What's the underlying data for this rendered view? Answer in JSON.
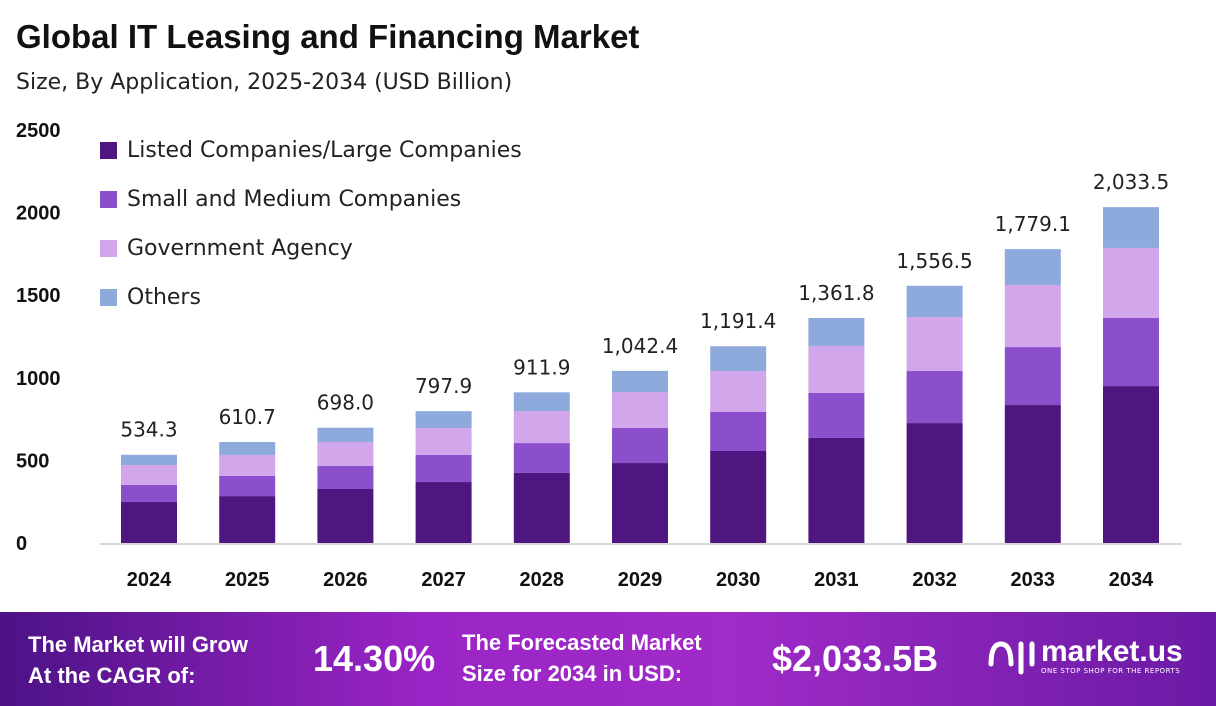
{
  "chart_data": {
    "type": "bar",
    "stacked": true,
    "title": "Global IT Leasing and Financing Market",
    "subtitle": "Size, By Application, 2025-2034 (USD Billion)",
    "categories": [
      "2024",
      "2025",
      "2026",
      "2027",
      "2028",
      "2029",
      "2030",
      "2031",
      "2032",
      "2033",
      "2034"
    ],
    "series": [
      {
        "name": "Listed Companies/Large Companies",
        "color": "#4f1680",
        "values": [
          248,
          284,
          327,
          369,
          424,
          484,
          557,
          636,
          726,
          835,
          950
        ]
      },
      {
        "name": "Small and Medium Companies",
        "color": "#8c4fcc",
        "values": [
          103,
          122,
          139,
          164,
          181,
          212,
          236,
          272,
          315,
          351,
          412
        ]
      },
      {
        "name": "Government Agency",
        "color": "#d2a6ea",
        "values": [
          121,
          127,
          145,
          163,
          194,
          218,
          248,
          285,
          327,
          376,
          424
        ]
      },
      {
        "name": "Others",
        "color": "#8eaadc",
        "values": [
          62,
          78,
          87,
          102,
          113,
          128,
          150,
          169,
          189,
          217,
          247
        ]
      }
    ],
    "totals": [
      "534.3",
      "610.7",
      "698.0",
      "797.9",
      "911.9",
      "1,042.4",
      "1,191.4",
      "1,361.8",
      "1,556.5",
      "1,779.1",
      "2,033.5"
    ],
    "yticks": [
      "0",
      "500",
      "1000",
      "1500",
      "2000",
      "2500"
    ],
    "ylim": [
      0,
      2500
    ],
    "grid": false,
    "legend": "top-left"
  },
  "footer": {
    "cagr_label_1": "The Market will Grow",
    "cagr_label_2": "At the CAGR of:",
    "cagr_value": "14.30%",
    "forecast_label_1": "The Forecasted Market",
    "forecast_label_2": "Size for 2034 in USD:",
    "forecast_value": "$2,033.5B",
    "logo_name": "market.us",
    "logo_tagline": "ONE STOP SHOP FOR THE REPORTS"
  }
}
